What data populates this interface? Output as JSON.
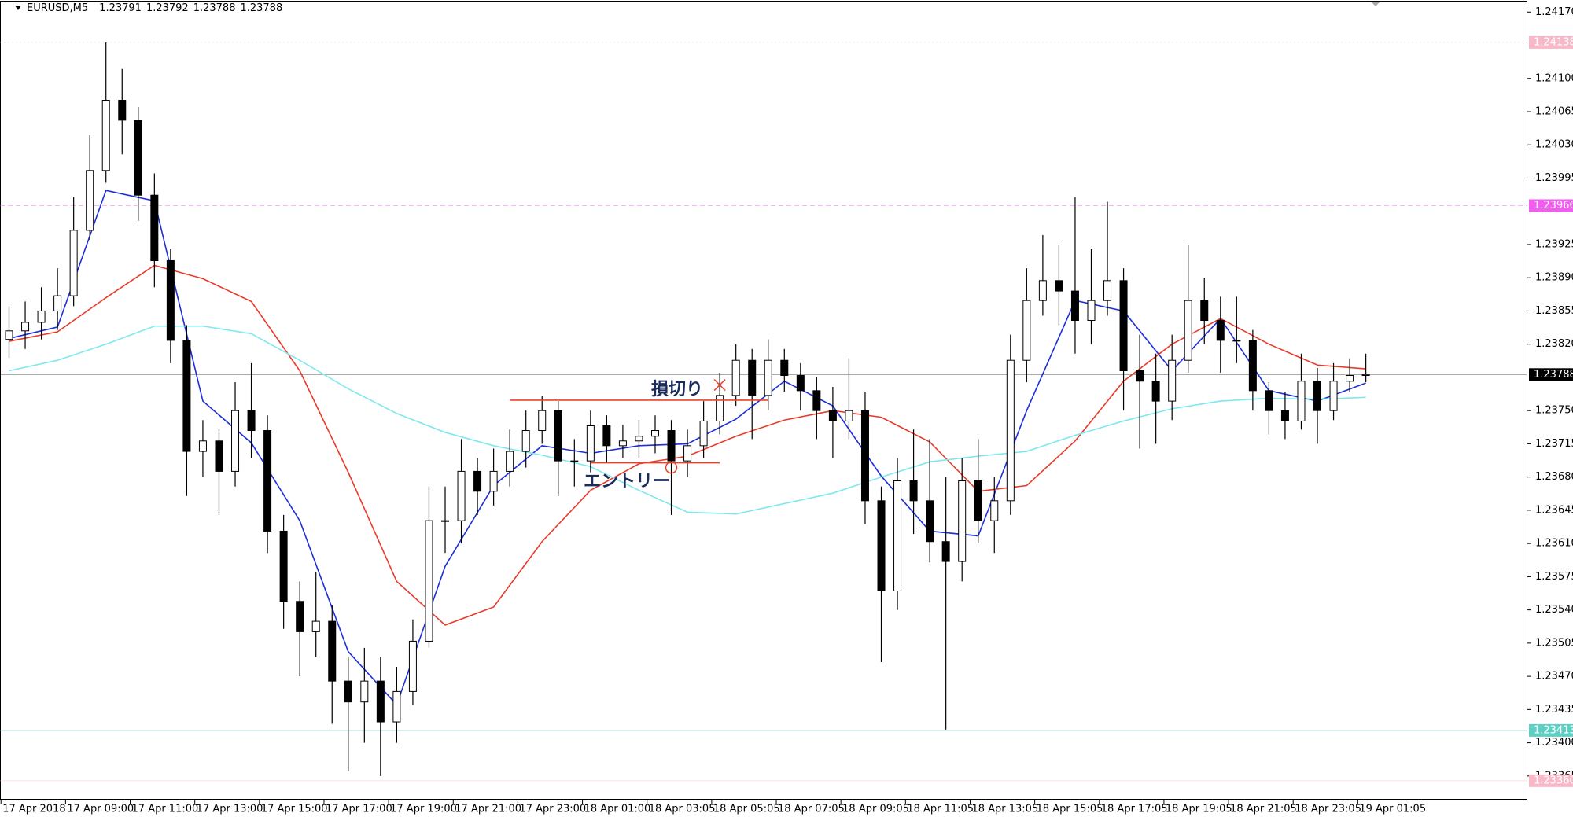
{
  "header": {
    "symbol": "EURUSD,M5",
    "ohlc": [
      1.23791,
      1.23792,
      1.23788,
      1.23788
    ]
  },
  "chart_data": {
    "type": "candlestick",
    "x": [
      0,
      1,
      2,
      3,
      4,
      5,
      6,
      7,
      8,
      9,
      10,
      11,
      12,
      13,
      14,
      15,
      16,
      17,
      18,
      19,
      20,
      21,
      22,
      23,
      24,
      25,
      26,
      27,
      28,
      29,
      30,
      31,
      32,
      33,
      34,
      35,
      36,
      37,
      38,
      39,
      40,
      41,
      42,
      43,
      44,
      45,
      46,
      47,
      48,
      49,
      50,
      51,
      52,
      53,
      54,
      55,
      56,
      57,
      58,
      59,
      60,
      61,
      62,
      63,
      64,
      65,
      66,
      67,
      68,
      69,
      70,
      71,
      72,
      73,
      74,
      75,
      76,
      77,
      78,
      79,
      80,
      81,
      82,
      83,
      84
    ],
    "open": [
      1.23825,
      1.23834,
      1.23843,
      1.23855,
      1.23871,
      1.2394,
      1.24003,
      1.24077,
      1.24056,
      1.23977,
      1.23908,
      1.23824,
      1.23707,
      1.23718,
      1.23686,
      1.2375,
      1.23729,
      1.23623,
      1.23549,
      1.23517,
      1.23528,
      1.23465,
      1.23443,
      1.23465,
      1.23422,
      1.23454,
      1.23507,
      1.23634,
      1.23634,
      1.23686,
      1.23665,
      1.23686,
      1.23707,
      1.23729,
      1.2375,
      1.23697,
      1.23697,
      1.23734,
      1.23713,
      1.23718,
      1.23723,
      1.23729,
      1.23697,
      1.23713,
      1.23739,
      1.23766,
      1.23803,
      1.23766,
      1.23803,
      1.23787,
      1.23771,
      1.2375,
      1.23739,
      1.2375,
      1.23655,
      1.2356,
      1.23676,
      1.23655,
      1.23612,
      1.23591,
      1.23676,
      1.23634,
      1.23655,
      1.23803,
      1.23866,
      1.23887,
      1.23876,
      1.23845,
      1.23866,
      1.23887,
      1.23792,
      1.23781,
      1.2376,
      1.23803,
      1.23866,
      1.23845,
      1.23824,
      1.23824,
      1.23771,
      1.2375,
      1.23739,
      1.23781,
      1.2375,
      1.23781,
      1.23787
    ],
    "high": [
      1.2386,
      1.23865,
      1.2388,
      1.239,
      1.23975,
      1.2404,
      1.24138,
      1.2411,
      1.2407,
      1.24,
      1.2392,
      1.2384,
      1.2374,
      1.2373,
      1.2378,
      1.238,
      1.23745,
      1.2364,
      1.2357,
      1.2358,
      1.23545,
      1.2349,
      1.235,
      1.2349,
      1.2348,
      1.2353,
      1.2367,
      1.2367,
      1.2372,
      1.237,
      1.2371,
      1.2373,
      1.2375,
      1.23765,
      1.2376,
      1.2372,
      1.2375,
      1.23745,
      1.23735,
      1.2374,
      1.23745,
      1.2374,
      1.2373,
      1.2376,
      1.2379,
      1.2382,
      1.23815,
      1.23825,
      1.23815,
      1.238,
      1.23785,
      1.23775,
      1.23805,
      1.2377,
      1.2367,
      1.237,
      1.2373,
      1.2372,
      1.2368,
      1.237,
      1.2372,
      1.2368,
      1.2383,
      1.239,
      1.23935,
      1.23925,
      1.23975,
      1.2392,
      1.2397,
      1.239,
      1.2383,
      1.2381,
      1.2383,
      1.23925,
      1.2389,
      1.2387,
      1.2387,
      1.23835,
      1.2378,
      1.2377,
      1.2381,
      1.23795,
      1.238,
      1.23805,
      1.2381
    ],
    "low": [
      1.23805,
      1.23815,
      1.23825,
      1.23835,
      1.2386,
      1.2393,
      1.2399,
      1.2402,
      1.2395,
      1.2388,
      1.238,
      1.2366,
      1.2368,
      1.2364,
      1.2367,
      1.237,
      1.236,
      1.2352,
      1.2347,
      1.2349,
      1.2342,
      1.2337,
      1.234,
      1.23365,
      1.234,
      1.2344,
      1.235,
      1.236,
      1.2361,
      1.2364,
      1.2365,
      1.2367,
      1.2369,
      1.23715,
      1.2366,
      1.2367,
      1.23685,
      1.23695,
      1.237,
      1.237,
      1.23705,
      1.2364,
      1.2368,
      1.237,
      1.23725,
      1.23755,
      1.2372,
      1.2375,
      1.2377,
      1.2375,
      1.2372,
      1.237,
      1.2372,
      1.2363,
      1.23485,
      1.2354,
      1.2362,
      1.2359,
      1.23414,
      1.2357,
      1.2361,
      1.236,
      1.2364,
      1.2378,
      1.2385,
      1.2384,
      1.2381,
      1.2382,
      1.2385,
      1.2375,
      1.2371,
      1.23715,
      1.2374,
      1.2379,
      1.2382,
      1.2379,
      1.238,
      1.2375,
      1.23725,
      1.2372,
      1.2373,
      1.23715,
      1.2374,
      1.2377,
      1.2378
    ],
    "close": [
      1.23834,
      1.23843,
      1.23855,
      1.23871,
      1.2394,
      1.24003,
      1.24077,
      1.24056,
      1.23977,
      1.23908,
      1.23824,
      1.23707,
      1.23718,
      1.23686,
      1.2375,
      1.23729,
      1.23623,
      1.23549,
      1.23517,
      1.23528,
      1.23465,
      1.23443,
      1.23465,
      1.23422,
      1.23454,
      1.23507,
      1.23634,
      1.23634,
      1.23686,
      1.23665,
      1.23686,
      1.23707,
      1.23729,
      1.2375,
      1.23697,
      1.23697,
      1.23734,
      1.23713,
      1.23718,
      1.23723,
      1.23729,
      1.23697,
      1.23713,
      1.23739,
      1.23766,
      1.23803,
      1.23766,
      1.23803,
      1.23787,
      1.23771,
      1.2375,
      1.23739,
      1.2375,
      1.23655,
      1.2356,
      1.23676,
      1.23655,
      1.23612,
      1.23591,
      1.23676,
      1.23634,
      1.23655,
      1.23803,
      1.23866,
      1.23887,
      1.23876,
      1.23845,
      1.23866,
      1.23887,
      1.23792,
      1.23781,
      1.2376,
      1.23803,
      1.23866,
      1.23845,
      1.23824,
      1.23824,
      1.23771,
      1.2375,
      1.23739,
      1.23781,
      1.2375,
      1.23781,
      1.23787,
      1.23788
    ],
    "bull_color": "#ffffff",
    "bear_color": "#000000",
    "candle_outline": "#000000",
    "series": [
      {
        "color": "#1c2fd8",
        "x": [
          0,
          3,
          6,
          9,
          12,
          15,
          18,
          21,
          24,
          27,
          30,
          33,
          36,
          39,
          42,
          45,
          48,
          51,
          54,
          57,
          60,
          63,
          66,
          69,
          72,
          75,
          78,
          81,
          84
        ],
        "values": [
          1.23826,
          1.23838,
          1.23982,
          1.23971,
          1.2376,
          1.23716,
          1.23634,
          1.23496,
          1.2344,
          1.23586,
          1.23671,
          1.23713,
          1.23705,
          1.23713,
          1.23715,
          1.23741,
          1.23781,
          1.23755,
          1.23681,
          1.23623,
          1.23618,
          1.2375,
          1.23866,
          1.23855,
          1.23792,
          1.23847,
          1.23771,
          1.2376,
          1.23779
        ]
      },
      {
        "color": "#e83a2a",
        "x": [
          0,
          3,
          6,
          9,
          12,
          15,
          18,
          21,
          24,
          27,
          30,
          33,
          36,
          39,
          42,
          45,
          48,
          51,
          54,
          57,
          60,
          63,
          66,
          69,
          72,
          75,
          78,
          81,
          84
        ],
        "values": [
          1.23823,
          1.23833,
          1.23869,
          1.23903,
          1.23889,
          1.23865,
          1.23792,
          1.23685,
          1.2357,
          1.23524,
          1.23543,
          1.23612,
          1.23666,
          1.23694,
          1.23702,
          1.23723,
          1.2374,
          1.2375,
          1.23743,
          1.23717,
          1.23665,
          1.23671,
          1.23718,
          1.23781,
          1.2382,
          1.23847,
          1.2382,
          1.23798,
          1.23794
        ]
      },
      {
        "color": "#7ee8ee",
        "x": [
          0,
          3,
          6,
          9,
          12,
          15,
          18,
          21,
          24,
          27,
          30,
          33,
          36,
          39,
          42,
          45,
          48,
          51,
          54,
          57,
          60,
          63,
          66,
          69,
          72,
          75,
          78,
          81,
          84
        ],
        "values": [
          1.23792,
          1.23803,
          1.2382,
          1.23839,
          1.23839,
          1.23831,
          1.23803,
          1.23773,
          1.23747,
          1.23727,
          1.23713,
          1.23703,
          1.23691,
          1.23666,
          1.23643,
          1.23641,
          1.23652,
          1.23663,
          1.2368,
          1.23696,
          1.23702,
          1.23707,
          1.23724,
          1.23739,
          1.23752,
          1.2376,
          1.23763,
          1.23762,
          1.23764
        ]
      }
    ],
    "hlines": [
      {
        "value": 1.24138,
        "color": "#f7b9c8",
        "style": "dotted"
      },
      {
        "value": 1.23966,
        "color": "#f25cf0",
        "style": "dashed"
      },
      {
        "value": 1.23788,
        "color": "#000000",
        "style": "solid"
      },
      {
        "value": 1.23413,
        "color": "#5fcfc4",
        "style": "solid"
      },
      {
        "value": 1.2336,
        "label": "1.23360",
        "color": "#f7b9c8",
        "style": "solid"
      }
    ],
    "trend_lines": [
      {
        "x": [
          31,
          47
        ],
        "y": [
          1.23761,
          1.23761
        ],
        "color": "#e8422d"
      },
      {
        "x": [
          36,
          44
        ],
        "y": [
          1.23695,
          1.23695
        ],
        "color": "#e8422d"
      }
    ],
    "markers": [
      {
        "x": 44,
        "y": 1.23777,
        "shape": "cross",
        "color": "#e8422d"
      },
      {
        "x": 41,
        "y": 1.2369,
        "shape": "circle",
        "color": "#e8422d"
      }
    ],
    "annotations": [
      "損切り",
      "エントリー"
    ],
    "xlim": [
      -0.56,
      94
    ],
    "ylim": [
      1.2334,
      1.24181
    ],
    "xticks": [
      {
        "value": -0.5,
        "label": "17 Apr 2018"
      },
      {
        "value": 3.5,
        "label": "17 Apr 09:00"
      },
      {
        "value": 7.5,
        "label": "17 Apr 11:00"
      },
      {
        "value": 11.5,
        "label": "17 Apr 13:00"
      },
      {
        "value": 15.5,
        "label": "17 Apr 15:00"
      },
      {
        "value": 19.5,
        "label": "17 Apr 17:00"
      },
      {
        "value": 23.5,
        "label": "17 Apr 19:00"
      },
      {
        "value": 27.5,
        "label": "17 Apr 21:00"
      },
      {
        "value": 31.5,
        "label": "17 Apr 23:00"
      },
      {
        "value": 35.5,
        "label": "18 Apr 01:00"
      },
      {
        "value": 39.5,
        "label": "18 Apr 03:05"
      },
      {
        "value": 43.5,
        "label": "18 Apr 05:05"
      },
      {
        "value": 47.5,
        "label": "18 Apr 07:05"
      },
      {
        "value": 51.5,
        "label": "18 Apr 09:05"
      },
      {
        "value": 55.5,
        "label": "18 Apr 11:05"
      },
      {
        "value": 59.5,
        "label": "18 Apr 13:05"
      },
      {
        "value": 63.5,
        "label": "18 Apr 15:05"
      },
      {
        "value": 67.5,
        "label": "18 Apr 17:05"
      },
      {
        "value": 71.5,
        "label": "18 Apr 19:05"
      },
      {
        "value": 75.5,
        "label": "18 Apr 21:05"
      },
      {
        "value": 79.5,
        "label": "18 Apr 23:05"
      },
      {
        "value": 83.5,
        "label": "19 Apr 01:05"
      }
    ],
    "yticks": [
      {
        "value": 1.2417,
        "label": "1.24170"
      },
      {
        "value": 1.241,
        "label": "1.24100"
      },
      1.24065,
      {
        "value": 1.2403,
        "label": "1.24030"
      },
      1.23995,
      1.23925,
      {
        "value": 1.2389,
        "label": "1.23890"
      },
      1.23855,
      {
        "value": 1.2382,
        "label": "1.23820"
      },
      {
        "value": 1.2375,
        "label": "1.23750"
      },
      1.23715,
      {
        "value": 1.2368,
        "label": "1.23680"
      },
      1.23645,
      {
        "value": 1.2361,
        "label": "1.23610"
      },
      1.23575,
      {
        "value": 1.2354,
        "label": "1.23540"
      },
      1.23505,
      {
        "value": 1.2347,
        "label": "1.23470"
      },
      1.23435,
      {
        "value": 1.234,
        "label": "1.23400"
      },
      1.23365
    ]
  }
}
